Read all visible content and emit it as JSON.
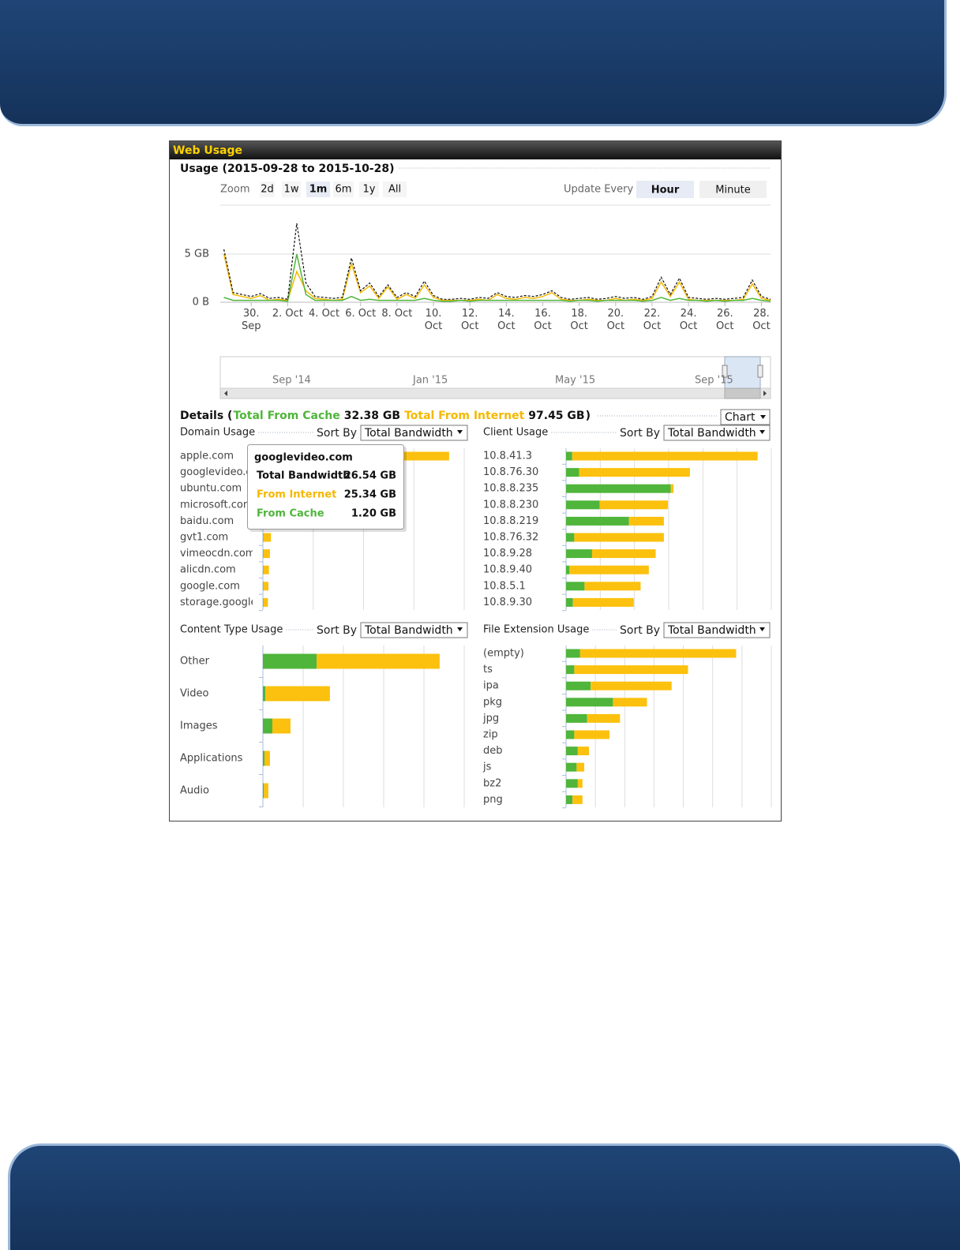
{
  "panel": {
    "title": "Web Usage",
    "zoom_label": "Zoom",
    "zoom": [
      "2d",
      "1w",
      "1m",
      "6m",
      "1y",
      "All"
    ],
    "zoom_selected": 2,
    "update_label": "Update Every",
    "update": [
      "Hour",
      "Minute"
    ],
    "update_selected": 0,
    "navigator": [
      "Sep '14",
      "Jan '15",
      "May '15",
      "Sep '15"
    ],
    "details": {
      "label": "Details (",
      "cache_label": "Total From Cache",
      "cache_value": "32.38 GB",
      "internet_label": "Total From Internet",
      "internet_value": "97.45 GB",
      "close": ")"
    },
    "view_select": "Chart",
    "tooltip": {
      "title": "googlevideo.com",
      "rows": [
        [
          "Total Bandwidth",
          "26.54 GB"
        ],
        [
          "From Internet",
          "25.34 GB"
        ],
        [
          "From Cache",
          "1.20 GB"
        ]
      ]
    }
  },
  "chart_data": [
    {
      "type": "line",
      "title": "Usage (2015-09-28 to 2015-10-28)",
      "x": [
        0.5,
        1,
        1.5,
        2,
        2.5,
        3,
        3.5,
        4,
        4.5,
        5,
        5.5,
        6,
        6.5,
        7,
        7.5,
        8,
        8.5,
        9,
        9.5,
        10,
        10.5,
        11,
        11.5,
        12,
        12.5,
        13,
        13.5,
        14,
        14.5,
        15,
        15.5,
        16,
        16.5,
        17,
        17.5,
        18,
        18.5,
        19,
        19.5,
        20,
        20.5,
        21,
        21.5,
        22,
        22.5,
        23,
        23.5,
        24,
        24.5,
        25,
        25.5,
        26,
        26.5,
        27,
        27.5,
        28,
        28.5,
        29,
        29.5,
        30,
        30.5
      ],
      "series": [
        {
          "name": "From Internet",
          "color": "#f5b800",
          "values": [
            5.0,
            0.8,
            0.6,
            0.4,
            0.7,
            0.2,
            0.3,
            0.2,
            3.2,
            1.2,
            0.4,
            0.3,
            0.2,
            0.3,
            4.0,
            1.0,
            1.7,
            0.4,
            1.6,
            0.3,
            0.8,
            0.4,
            1.8,
            0.5,
            0.2,
            0.2,
            0.2,
            0.2,
            0.3,
            0.2,
            0.8,
            0.4,
            0.3,
            0.5,
            0.4,
            0.6,
            1.0,
            0.3,
            0.2,
            0.2,
            0.3,
            0.2,
            0.2,
            0.4,
            0.2,
            0.3,
            0.2,
            0.4,
            2.1,
            0.6,
            2.1,
            0.3,
            0.2,
            0.2,
            0.2,
            0.2,
            0.2,
            0.3,
            1.9,
            0.4,
            0.2
          ]
        },
        {
          "name": "From Cache",
          "color": "#4fb53b",
          "values": [
            0.5,
            0.2,
            0.2,
            0.2,
            0.2,
            0.2,
            0.2,
            0.1,
            5.0,
            0.8,
            0.2,
            0.2,
            0.2,
            0.2,
            0.6,
            0.2,
            0.3,
            0.2,
            0.2,
            0.2,
            0.2,
            0.2,
            0.4,
            0.2,
            0.1,
            0.1,
            0.2,
            0.1,
            0.2,
            0.2,
            0.2,
            0.2,
            0.2,
            0.2,
            0.2,
            0.2,
            0.2,
            0.2,
            0.1,
            0.2,
            0.2,
            0.1,
            0.2,
            0.2,
            0.2,
            0.2,
            0.1,
            0.2,
            0.5,
            0.2,
            0.4,
            0.2,
            0.2,
            0.1,
            0.2,
            0.1,
            0.2,
            0.2,
            0.4,
            0.2,
            0.1
          ]
        },
        {
          "name": "Total Bandwidth",
          "color": "#111111",
          "values": [
            5.5,
            1.0,
            0.8,
            0.6,
            0.9,
            0.4,
            0.5,
            0.3,
            8.2,
            2.0,
            0.6,
            0.5,
            0.4,
            0.5,
            4.6,
            1.2,
            2.0,
            0.6,
            1.8,
            0.5,
            1.0,
            0.6,
            2.2,
            0.7,
            0.3,
            0.3,
            0.4,
            0.3,
            0.5,
            0.4,
            1.0,
            0.6,
            0.5,
            0.7,
            0.6,
            0.8,
            1.2,
            0.5,
            0.3,
            0.4,
            0.5,
            0.3,
            0.4,
            0.6,
            0.4,
            0.5,
            0.3,
            0.6,
            2.6,
            0.8,
            2.5,
            0.5,
            0.4,
            0.3,
            0.4,
            0.3,
            0.4,
            0.5,
            2.3,
            0.6,
            0.3
          ]
        }
      ],
      "xlim": [
        0.3,
        30.5
      ],
      "xticks": [
        {
          "value": 2,
          "label": "30. Sep"
        },
        {
          "value": 4,
          "label": "2. Oct"
        },
        {
          "value": 6,
          "label": "4. Oct"
        },
        {
          "value": 8,
          "label": "6. Oct"
        },
        {
          "value": 10,
          "label": "8. Oct"
        },
        {
          "value": 12,
          "label": "10. Oct"
        },
        {
          "value": 14,
          "label": "12. Oct"
        },
        {
          "value": 16,
          "label": "14. Oct"
        },
        {
          "value": 18,
          "label": "16. Oct"
        },
        {
          "value": 20,
          "label": "18. Oct"
        },
        {
          "value": 22,
          "label": "20. Oct"
        },
        {
          "value": 24,
          "label": "22. Oct"
        },
        {
          "value": 26,
          "label": "24. Oct"
        },
        {
          "value": 28,
          "label": "26. Oct"
        },
        {
          "value": 30,
          "label": "28. Oct"
        }
      ],
      "ylim": [
        0,
        10
      ],
      "yticks": [
        {
          "value": 0,
          "label": "0 B"
        },
        {
          "value": 5,
          "label": "5 GB"
        }
      ],
      "grid": true
    },
    {
      "type": "hbar",
      "title": "Domain Usage",
      "sort_label": "Sort By",
      "sort_value": "Total Bandwidth",
      "categories": [
        "apple.com",
        "googlevideo.com",
        "ubuntu.com",
        "microsoft.com",
        "baidu.com",
        "gvt1.com",
        "vimeocdn.com",
        "alicdn.com",
        "google.com",
        "storage.googleapis.com"
      ],
      "series": [
        {
          "name": "From Cache",
          "color": "#4fb53b",
          "values": [
            1.5,
            1.2,
            2.5,
            1.0,
            0.5,
            0.1,
            0.1,
            0.1,
            0.1,
            0.1
          ]
        },
        {
          "name": "From Internet",
          "color": "#fcc10e",
          "values": [
            35.5,
            25.34,
            15.5,
            11.0,
            7.5,
            1.5,
            1.3,
            1.1,
            1.0,
            0.9
          ]
        }
      ],
      "xlim": [
        0,
        40
      ],
      "xticks": [
        0,
        10,
        20,
        30,
        40
      ]
    },
    {
      "type": "hbar",
      "title": "Client Usage",
      "sort_label": "Sort By",
      "sort_value": "Total Bandwidth",
      "categories": [
        "10.8.41.3",
        "10.8.76.30",
        "10.8.8.235",
        "10.8.8.230",
        "10.8.8.219",
        "10.8.76.32",
        "10.8.9.28",
        "10.8.9.40",
        "10.8.5.1",
        "10.8.9.30"
      ],
      "series": [
        {
          "name": "From Cache",
          "color": "#4fb53b",
          "values": [
            0.9,
            1.9,
            15.3,
            4.9,
            9.2,
            1.2,
            3.8,
            0.5,
            2.7,
            1.0
          ]
        },
        {
          "name": "From Internet",
          "color": "#fcc10e",
          "values": [
            27.1,
            16.2,
            0.4,
            10.0,
            5.1,
            13.1,
            9.3,
            11.6,
            8.2,
            8.9
          ]
        }
      ],
      "xlim": [
        0,
        30
      ],
      "xticks": [
        0,
        5,
        10,
        15,
        20,
        25,
        30
      ]
    },
    {
      "type": "hbar",
      "title": "Content Type Usage",
      "sort_label": "Sort By",
      "sort_value": "Total Bandwidth",
      "categories": [
        "Other",
        "Video",
        "Images",
        "Applications",
        "Audio"
      ],
      "series": [
        {
          "name": "From Cache",
          "color": "#4fb53b",
          "values": [
            26.7,
            1.2,
            4.7,
            0.8,
            0.5
          ]
        },
        {
          "name": "From Internet",
          "color": "#fcc10e",
          "values": [
            61.1,
            32.1,
            9.0,
            2.7,
            2.2
          ]
        }
      ],
      "xlim": [
        0,
        100
      ],
      "xticks": [
        0,
        20,
        40,
        60,
        80,
        100
      ]
    },
    {
      "type": "hbar",
      "title": "File Extension Usage",
      "sort_label": "Sort By",
      "sort_value": "Total Bandwidth",
      "categories": [
        "(empty)",
        "ts",
        "ipa",
        "pkg",
        "jpg",
        "zip",
        "deb",
        "js",
        "bz2",
        "png"
      ],
      "series": [
        {
          "name": "From Cache",
          "color": "#4fb53b",
          "values": [
            2.4,
            1.4,
            4.2,
            8.0,
            3.6,
            1.4,
            2.0,
            1.8,
            2.0,
            1.1
          ]
        },
        {
          "name": "From Internet",
          "color": "#fcc10e",
          "values": [
            26.6,
            19.4,
            13.8,
            5.8,
            5.6,
            6.0,
            1.9,
            1.3,
            0.8,
            1.7
          ]
        }
      ],
      "xlim": [
        0,
        35
      ],
      "xticks": [
        0,
        5,
        10,
        15,
        20,
        25,
        30,
        35
      ]
    }
  ]
}
